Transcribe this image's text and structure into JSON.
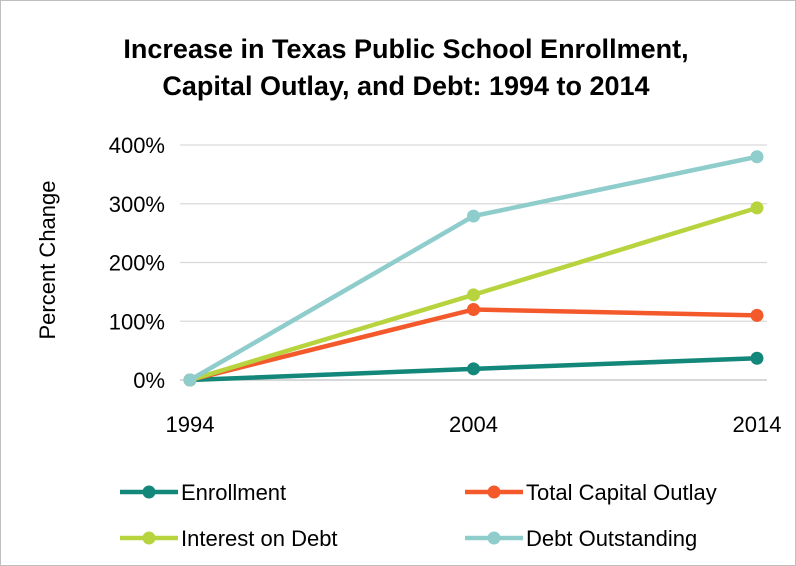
{
  "chart_data": {
    "type": "line",
    "title_line1": "Increase in Texas Public School Enrollment,",
    "title_line2": "Capital Outlay, and Debt: 1994 to 2014",
    "xlabel": "",
    "ylabel": "Percent Change",
    "categories": [
      "1994",
      "2004",
      "2014"
    ],
    "ylim": [
      0,
      400
    ],
    "yticks": [
      0,
      100,
      200,
      300,
      400
    ],
    "ytick_labels": [
      "0%",
      "100%",
      "200%",
      "300%",
      "400%"
    ],
    "grid": "horizontal",
    "legend_position": "bottom",
    "series": [
      {
        "name": "Enrollment",
        "values": [
          0,
          19,
          37
        ],
        "color": "#12877a"
      },
      {
        "name": "Total Capital Outlay",
        "values": [
          0,
          120,
          110
        ],
        "color": "#f4592b"
      },
      {
        "name": "Interest on Debt",
        "values": [
          0,
          145,
          293
        ],
        "color": "#b7d43f"
      },
      {
        "name": "Debt Outstanding",
        "values": [
          0,
          279,
          380
        ],
        "color": "#8fcccc"
      }
    ]
  }
}
